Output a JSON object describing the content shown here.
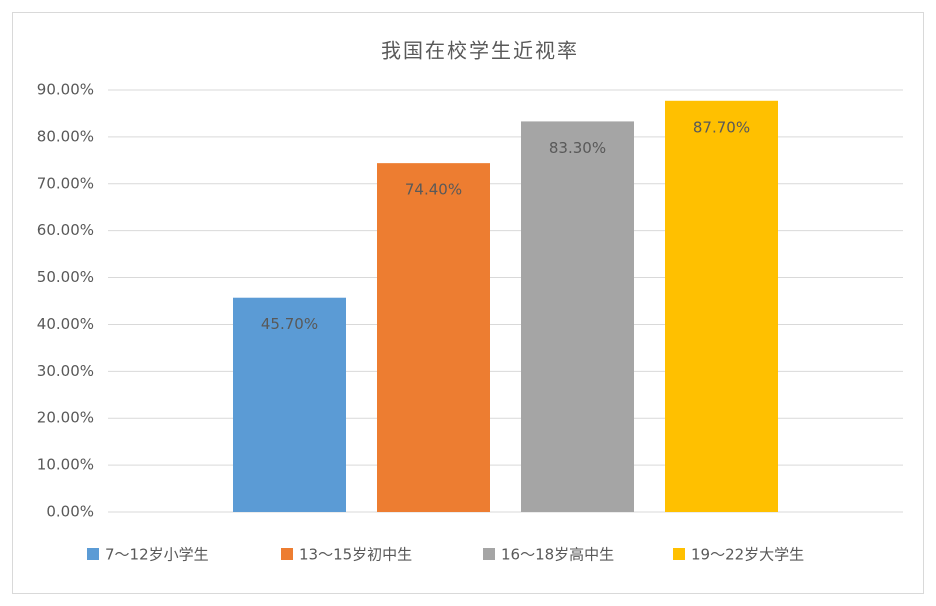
{
  "chart_data": {
    "type": "bar",
    "title": "我国在校学生近视率",
    "categories": [
      null
    ],
    "series": [
      {
        "name": "7～12岁小学生",
        "color": "#5b9bd5",
        "values": [
          45.7
        ],
        "value_labels": [
          "45.70%"
        ]
      },
      {
        "name": "13～15岁初中生",
        "color": "#ed7d31",
        "values": [
          74.4
        ],
        "value_labels": [
          "74.40%"
        ]
      },
      {
        "name": "16～18岁高中生",
        "color": "#a5a5a5",
        "values": [
          83.3
        ],
        "value_labels": [
          "83.30%"
        ]
      },
      {
        "name": "19～22岁大学生",
        "color": "#ffc000",
        "values": [
          87.7
        ],
        "value_labels": [
          "87.70%"
        ]
      }
    ],
    "ylim": [
      0,
      90
    ],
    "yticks": [
      {
        "value": 0,
        "label": "0.00%"
      },
      {
        "value": 10,
        "label": "10.00%"
      },
      {
        "value": 20,
        "label": "20.00%"
      },
      {
        "value": 30,
        "label": "30.00%"
      },
      {
        "value": 40,
        "label": "40.00%"
      },
      {
        "value": 50,
        "label": "50.00%"
      },
      {
        "value": 60,
        "label": "60.00%"
      },
      {
        "value": 70,
        "label": "70.00%"
      },
      {
        "value": 80,
        "label": "80.00%"
      },
      {
        "value": 90,
        "label": "90.00%"
      }
    ],
    "grid": true,
    "legend": "bottom"
  }
}
